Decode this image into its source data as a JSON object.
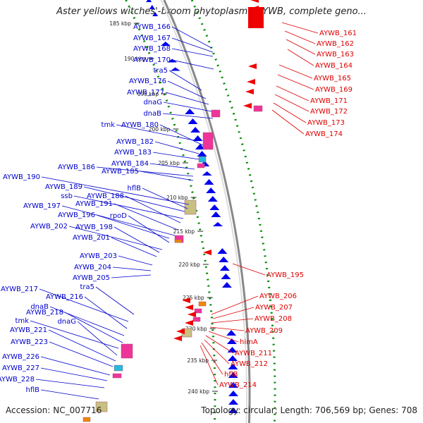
{
  "title": "Aster yellows witches'-broom phytoplasma AYWB, complete geno...",
  "footer": {
    "accession": "Accession: NC_007716",
    "summary": "Topology: circular; Length: 706,569 bp; Genes: 708"
  },
  "colors": {
    "forward_cds": "#0000ee",
    "reverse_cds": "#ee0000",
    "backbone": "#888888",
    "gc_dots": "#008800",
    "label_forward": "#0000cc",
    "label_reverse": "#dd0000",
    "rna_pink": "#ee3399",
    "rna_cyan": "#22bbdd",
    "rna_orange": "#ee8800",
    "rna_olive": "#c8c080"
  },
  "scale_labels": [
    "185 kbp",
    "190 kbp",
    "195 kbp",
    "200 kbp",
    "205 kbp",
    "210 kbp",
    "215 kbp",
    "220 kbp",
    "225 kbp",
    "230 kbp",
    "235 kbp",
    "240 kbp"
  ],
  "forward_labels": [
    "AYWB_166",
    "AYWB_167",
    "AYWB_168",
    "AYWB_170",
    "tra5",
    "AYWB_176",
    "AYWB_177",
    "dnaG",
    "dnaB",
    "tmk",
    "AYWB_180",
    "AYWB_182",
    "AYWB_183",
    "AYWB_184",
    "AYWB_186",
    "AYWB_185",
    "AYWB_190",
    "hflB",
    "AYWB_189",
    "ssb",
    "AYWB_188",
    "AYWB_191",
    "AYWB_197",
    "AYWB_196",
    "rpoD",
    "AYWB_202",
    "AYWB_198",
    "AYWB_201",
    "AYWB_203",
    "AYWB_204",
    "AYWB_205",
    "tra5",
    "AYWB_217",
    "AYWB_216",
    "dnaB",
    "AYWB_218",
    "tmk",
    "dnaG",
    "AYWB_221",
    "AYWB_223",
    "AYWB_226",
    "AYWB_227",
    "AYWB_228",
    "hflB"
  ],
  "reverse_labels": [
    "AYWB_161",
    "AYWB_162",
    "AYWB_163",
    "AYWB_164",
    "AYWB_165",
    "AYWB_169",
    "AYWB_171",
    "AYWB_172",
    "AYWB_173",
    "AYWB_174",
    "AYWB_195",
    "AYWB_206",
    "AYWB_207",
    "AYWB_208",
    "AYWB_209",
    "himA",
    "AYWB_211",
    "AYWB_212",
    "hflB",
    "AYWB_214"
  ]
}
